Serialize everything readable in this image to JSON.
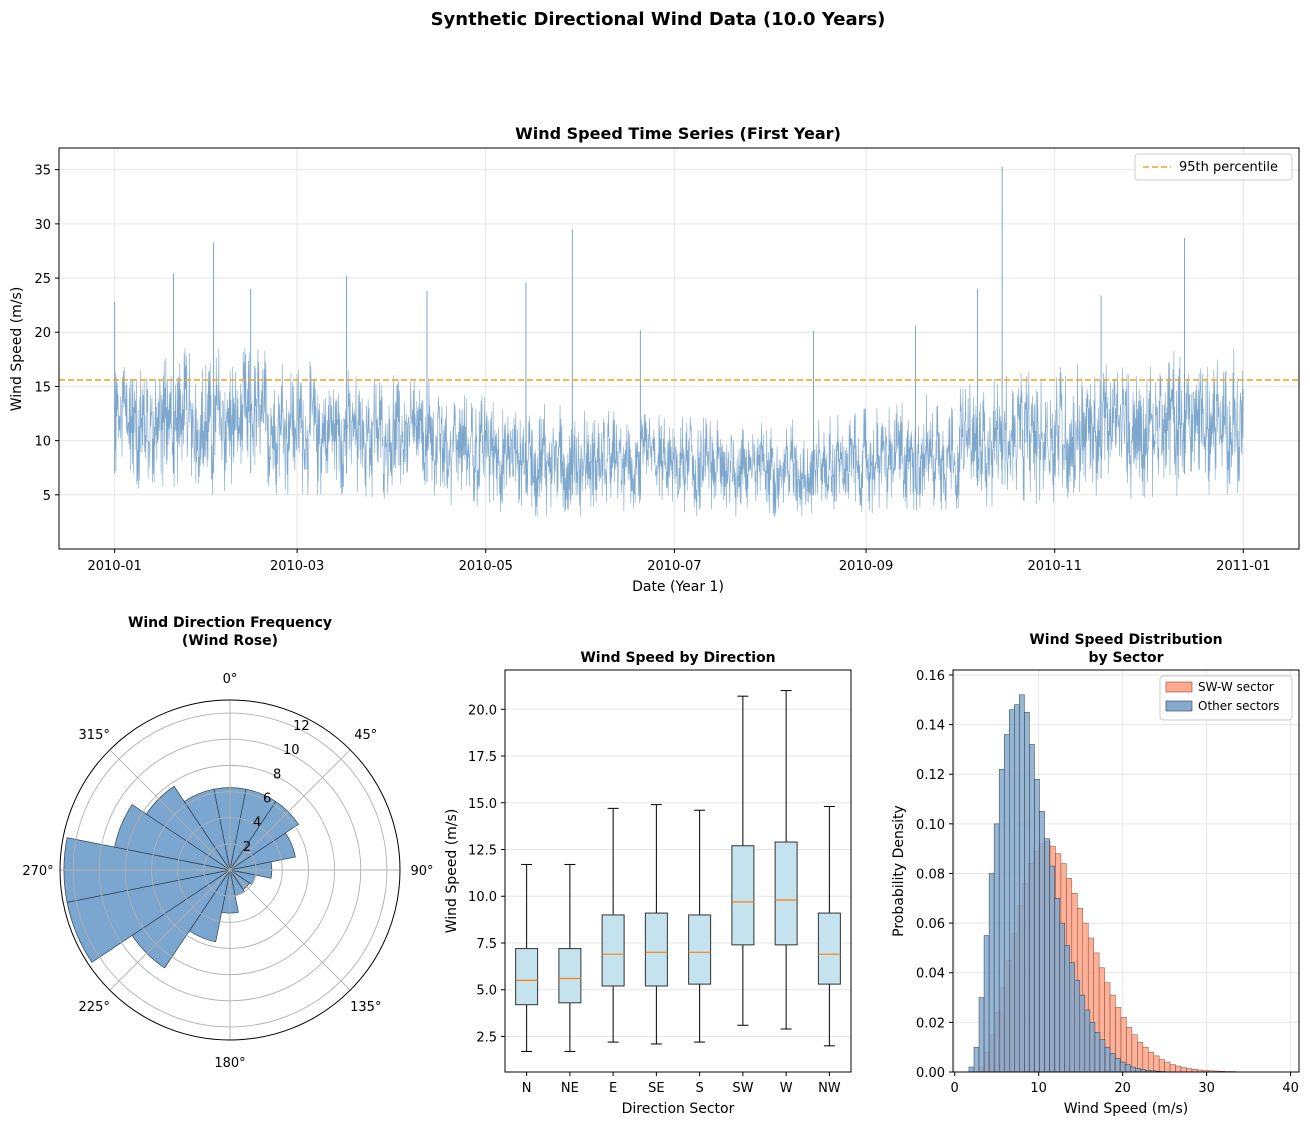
{
  "figure": {
    "title": "Synthetic Directional Wind Data (10.0 Years)"
  },
  "colors": {
    "series": "#6f9dc7",
    "percentile": "#f5a623",
    "rose": "#7aa6cf",
    "box": "#c4e3ee",
    "median": "#ff7f0e",
    "swsector": "#fca98d",
    "other": "#85a9cc"
  },
  "chart_data": [
    {
      "type": "line",
      "title": "Wind Speed Time Series (First Year)",
      "xlabel": "Date (Year 1)",
      "ylabel": "Wind Speed (m/s)",
      "xticks": [
        "2010-01",
        "2010-03",
        "2010-05",
        "2010-07",
        "2010-09",
        "2010-11",
        "2011-01"
      ],
      "xtick_days": [
        0,
        59,
        120,
        181,
        243,
        304,
        365
      ],
      "xlim_days": [
        -18,
        383
      ],
      "yticks": [
        5,
        10,
        15,
        20,
        25,
        30,
        35
      ],
      "ylim": [
        0,
        37
      ],
      "grid": true,
      "legend": {
        "position": "top-right",
        "entries": [
          "95th percentile"
        ]
      },
      "percentile_95": 15.6,
      "envelope": {
        "months": [
          "2010-01",
          "2010-02",
          "2010-03",
          "2010-04",
          "2010-05",
          "2010-06",
          "2010-07",
          "2010-08",
          "2010-09",
          "2010-10",
          "2010-11",
          "2010-12"
        ],
        "typical_high": [
          18.5,
          18.5,
          16.5,
          15.5,
          13.5,
          12.5,
          12,
          12,
          14,
          16,
          17.5,
          18.5
        ],
        "typical_low": [
          5,
          5,
          5,
          4,
          3,
          3,
          3,
          3,
          3.5,
          4,
          4.5,
          5
        ]
      },
      "peaks": [
        {
          "date": "2010-01-01",
          "value": 22.8
        },
        {
          "date": "2010-01-20",
          "value": 25.4
        },
        {
          "date": "2010-02-02",
          "value": 28.3
        },
        {
          "date": "2010-02-14",
          "value": 24.0
        },
        {
          "date": "2010-03-17",
          "value": 25.2
        },
        {
          "date": "2010-04-12",
          "value": 23.8
        },
        {
          "date": "2010-05-14",
          "value": 24.6
        },
        {
          "date": "2010-05-29",
          "value": 29.5
        },
        {
          "date": "2010-06-20",
          "value": 20.2
        },
        {
          "date": "2010-08-15",
          "value": 20.1
        },
        {
          "date": "2010-09-17",
          "value": 20.6
        },
        {
          "date": "2010-10-07",
          "value": 24.0
        },
        {
          "date": "2010-10-15",
          "value": 35.3
        },
        {
          "date": "2010-11-16",
          "value": 23.4
        },
        {
          "date": "2010-12-13",
          "value": 28.7
        }
      ]
    },
    {
      "type": "bar",
      "subtype": "polar",
      "title": "Wind Direction Frequency\n(Wind Rose)",
      "angle_labels": [
        "0°",
        "45°",
        "90°",
        "135°",
        "180°",
        "225°",
        "270°",
        "315°"
      ],
      "radial_ticks": [
        2,
        4,
        6,
        8,
        10,
        12
      ],
      "rmax": 13,
      "sector_width_deg": 22.5,
      "directions_deg": [
        0,
        22.5,
        45,
        67.5,
        90,
        112.5,
        135,
        157.5,
        180,
        202.5,
        225,
        247.5,
        270,
        292.5,
        315,
        337.5
      ],
      "values": [
        6.3,
        6.3,
        6.3,
        5.1,
        3.2,
        2.0,
        1.8,
        2.0,
        3.3,
        5.6,
        9.0,
        12.7,
        12.7,
        9.0,
        7.7,
        6.3
      ]
    },
    {
      "type": "box",
      "title": "Wind Speed by Direction",
      "xlabel": "Direction Sector",
      "ylabel": "Wind Speed (m/s)",
      "categories": [
        "N",
        "NE",
        "E",
        "SE",
        "S",
        "SW",
        "W",
        "NW"
      ],
      "whisker_low": [
        1.7,
        1.7,
        2.2,
        2.1,
        2.2,
        3.1,
        2.9,
        2.0
      ],
      "q1": [
        4.2,
        4.3,
        5.2,
        5.2,
        5.3,
        7.4,
        7.4,
        5.3
      ],
      "median": [
        5.5,
        5.6,
        6.9,
        7.0,
        7.0,
        9.7,
        9.8,
        6.9
      ],
      "q3": [
        7.2,
        7.2,
        9.0,
        9.1,
        9.0,
        12.7,
        12.9,
        9.1
      ],
      "whisker_high": [
        11.7,
        11.7,
        14.7,
        14.9,
        14.6,
        20.7,
        21.0,
        14.8
      ],
      "yticks": [
        2.5,
        5.0,
        7.5,
        10.0,
        12.5,
        15.0,
        17.5,
        20.0
      ],
      "yticks_text": [
        "2.5",
        "5.0",
        "7.5",
        "10.0",
        "12.5",
        "15.0",
        "17.5",
        "20.0"
      ],
      "ylim": [
        0.6,
        22.1
      ],
      "grid": true
    },
    {
      "type": "bar",
      "subtype": "histogram",
      "title": "Wind Speed Distribution\nby Sector",
      "xlabel": "Wind Speed (m/s)",
      "ylabel": "Probability Density",
      "xticks": [
        0,
        10,
        20,
        30,
        40
      ],
      "xlim": [
        -0.2,
        41
      ],
      "yticks": [
        0.0,
        0.02,
        0.04,
        0.06,
        0.08,
        0.1,
        0.12,
        0.14,
        0.16
      ],
      "yticks_text": [
        "0.00",
        "0.02",
        "0.04",
        "0.06",
        "0.08",
        "0.10",
        "0.12",
        "0.14",
        "0.16"
      ],
      "ylim": [
        0,
        0.162
      ],
      "legend": {
        "position": "top-right",
        "entries": [
          "SW-W sector",
          "Other sectors"
        ]
      },
      "series": [
        {
          "name": "SW-W sector",
          "bin_start": 2.9,
          "bin_width": 0.65,
          "values": [
            0.002,
            0.008,
            0.015,
            0.024,
            0.034,
            0.045,
            0.056,
            0.067,
            0.076,
            0.084,
            0.089,
            0.092,
            0.093,
            0.091,
            0.088,
            0.084,
            0.078,
            0.072,
            0.066,
            0.06,
            0.054,
            0.048,
            0.042,
            0.036,
            0.031,
            0.026,
            0.022,
            0.018,
            0.015,
            0.012,
            0.01,
            0.008,
            0.0065,
            0.005,
            0.004,
            0.003,
            0.0024,
            0.0018,
            0.0014,
            0.0011,
            0.0008,
            0.0006,
            0.0005,
            0.0004,
            0.0003,
            0.0002,
            0.0002,
            0.0001,
            0.0001,
            0.0001
          ]
        },
        {
          "name": "Other sectors",
          "bin_start": 1.7,
          "bin_width": 0.6,
          "values": [
            0.002,
            0.01,
            0.03,
            0.055,
            0.08,
            0.1,
            0.122,
            0.136,
            0.146,
            0.148,
            0.152,
            0.145,
            0.132,
            0.118,
            0.105,
            0.094,
            0.083,
            0.07,
            0.06,
            0.051,
            0.044,
            0.037,
            0.031,
            0.025,
            0.02,
            0.016,
            0.013,
            0.01,
            0.0075,
            0.0055,
            0.004,
            0.003,
            0.002,
            0.0015,
            0.001,
            0.0007,
            0.0005,
            0.0003,
            0.0002,
            0.0001
          ]
        }
      ]
    }
  ]
}
